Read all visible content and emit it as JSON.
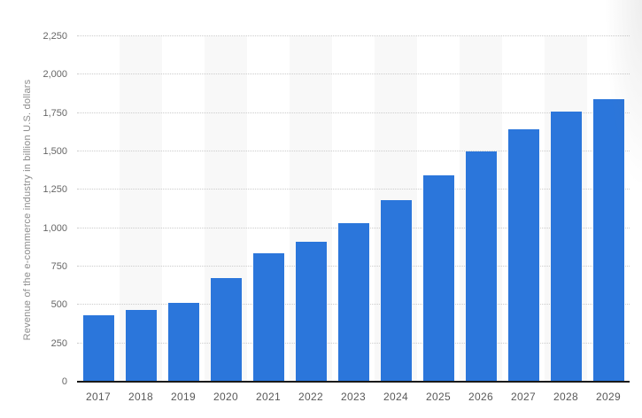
{
  "chart_data": {
    "type": "bar",
    "title": "",
    "xlabel": "",
    "ylabel": "Revenue of the e-commerce industry in billion U.S. dollars",
    "categories": [
      "2017",
      "2018",
      "2019",
      "2020",
      "2021",
      "2022",
      "2023",
      "2024",
      "2025",
      "2026",
      "2027",
      "2028",
      "2029"
    ],
    "series": [
      {
        "name": "Revenue in billion U.S. dollars",
        "values": [
          430,
          465,
          515,
          675,
          835,
          910,
          1030,
          1185,
          1345,
          1500,
          1645,
          1760,
          1840
        ]
      }
    ],
    "ylim": [
      0,
      2250
    ],
    "ytick_step": 250,
    "ytick_labels": [
      "0",
      "250",
      "500",
      "750",
      "1,000",
      "1,250",
      "1,500",
      "1,750",
      "2,000",
      "2,250"
    ],
    "grid": "horizontal-dotted",
    "legend_position": "none",
    "column_stripes": "alternating, striped on even years (2018, 2020, 2022, 2024, 2026, 2028)",
    "colors": {
      "bar": "#2b76db",
      "stripe": "#f8f8f8",
      "gridline": "#cccccc",
      "axis_line": "#1a1a1a",
      "ytick_text": "#666666",
      "xtick_text": "#595959",
      "ylabel_text": "#8c8c8c",
      "background": "#ffffff"
    }
  }
}
